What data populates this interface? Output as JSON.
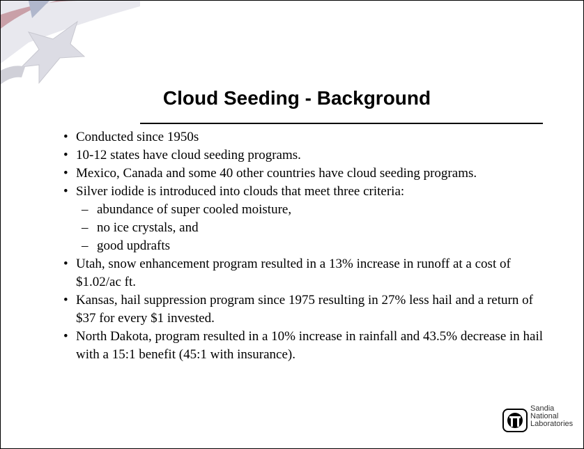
{
  "slide": {
    "title": "Cloud Seeding - Background",
    "bullets": [
      {
        "text": "Conducted since 1950s"
      },
      {
        "text": "10-12 states have cloud seeding programs."
      },
      {
        "text": "Mexico, Canada and some 40 other countries have cloud seeding programs."
      },
      {
        "text": "Silver iodide is introduced into clouds that meet three criteria:",
        "subs": [
          "abundance of super cooled moisture,",
          "no ice crystals, and",
          "good updrafts"
        ]
      },
      {
        "text": "Utah, snow enhancement program resulted in a 13% increase in runoff at a cost of $1.02/ac ft."
      },
      {
        "text": "Kansas, hail suppression program since 1975 resulting in 27% less hail and a return of $37 for every $1 invested."
      },
      {
        "text": "North Dakota, program resulted in a 10% increase in rainfall and 43.5% decrease in hail with a 15:1 benefit (45:1 with insurance)."
      }
    ],
    "logo": {
      "lines": [
        "Sandia",
        "National",
        "Laboratories"
      ]
    }
  }
}
